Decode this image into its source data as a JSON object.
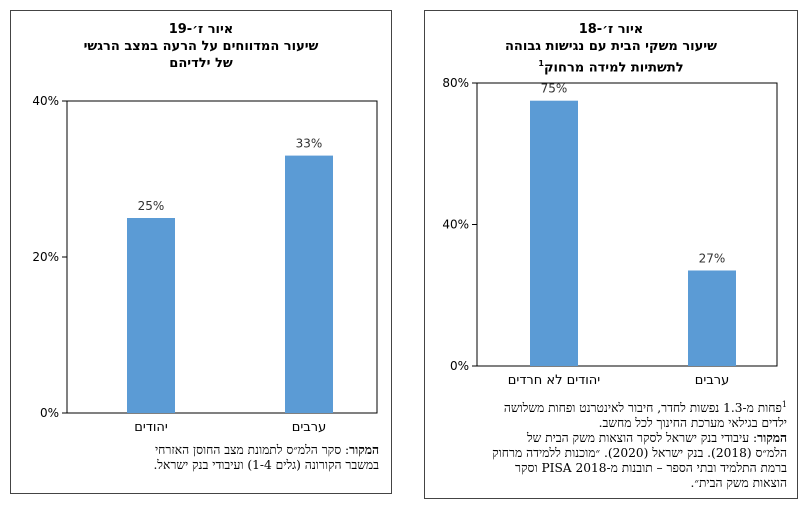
{
  "left_figure": {
    "title_line1": "איור ז׳-19",
    "title_line2": "שיעור המדווחים על הרעה במצב הרגשי",
    "title_line3": "של ילדיהם",
    "source_label": "המקור",
    "source_line1": ": סקר הלמ״ס לתמונת מצב החוסן האזרחי",
    "source_line2": "במשבר הקורונה (גלים 1-4) ועיבודי בנק ישראל."
  },
  "right_figure": {
    "title_line1": "איור ז׳-18",
    "title_line2": "שיעור משקי הבית עם נגישות גבוהה",
    "title_line3": "לתשתיות למידה מרחוק",
    "title_sup": "1",
    "footnote_sup": "1",
    "footnote_line1": "פחות מ-1.3 נפשות לחדר, חיבור לאינטרנט ופחות משלושה",
    "footnote_line2": "ילדים בגילאי מערכת החינוך לכל מחשב.",
    "source_label": "המקור",
    "source_line1": ": עיבודי בנק ישראל לסקר הוצאות משק הבית של",
    "source_line2": "הלמ״ס (2018). בנק ישראל (2020). ״מוכנות ללמידה מרחוק",
    "source_line3": "ברמת התלמיד ובתי הספר – תובנות מ-PISA 2018 וסקר",
    "source_line4": "הוצאות משק הבית״."
  },
  "bar_color": "#5b9bd5",
  "chart_data": [
    {
      "type": "bar",
      "title": "שיעור המדווחים על הרעה במצב הרגשי של ילדיהם",
      "categories": [
        "יהודים",
        "ערבים"
      ],
      "values": [
        25,
        33
      ],
      "value_labels": [
        "25%",
        "33%"
      ],
      "ylim": [
        0,
        40
      ],
      "yticks": [
        0,
        20,
        40
      ],
      "ytick_labels": [
        "0%",
        "20%",
        "40%"
      ],
      "grid": false
    },
    {
      "type": "bar",
      "title": "שיעור משקי הבית עם נגישות גבוהה לתשתיות למידה מרחוק",
      "categories": [
        "יהודים לא חרדים",
        "ערבים"
      ],
      "values": [
        75,
        27
      ],
      "value_labels": [
        "75%",
        "27%"
      ],
      "ylim": [
        0,
        80
      ],
      "yticks": [
        0,
        40,
        80
      ],
      "ytick_labels": [
        "0%",
        "40%",
        "80%"
      ],
      "grid": false
    }
  ]
}
